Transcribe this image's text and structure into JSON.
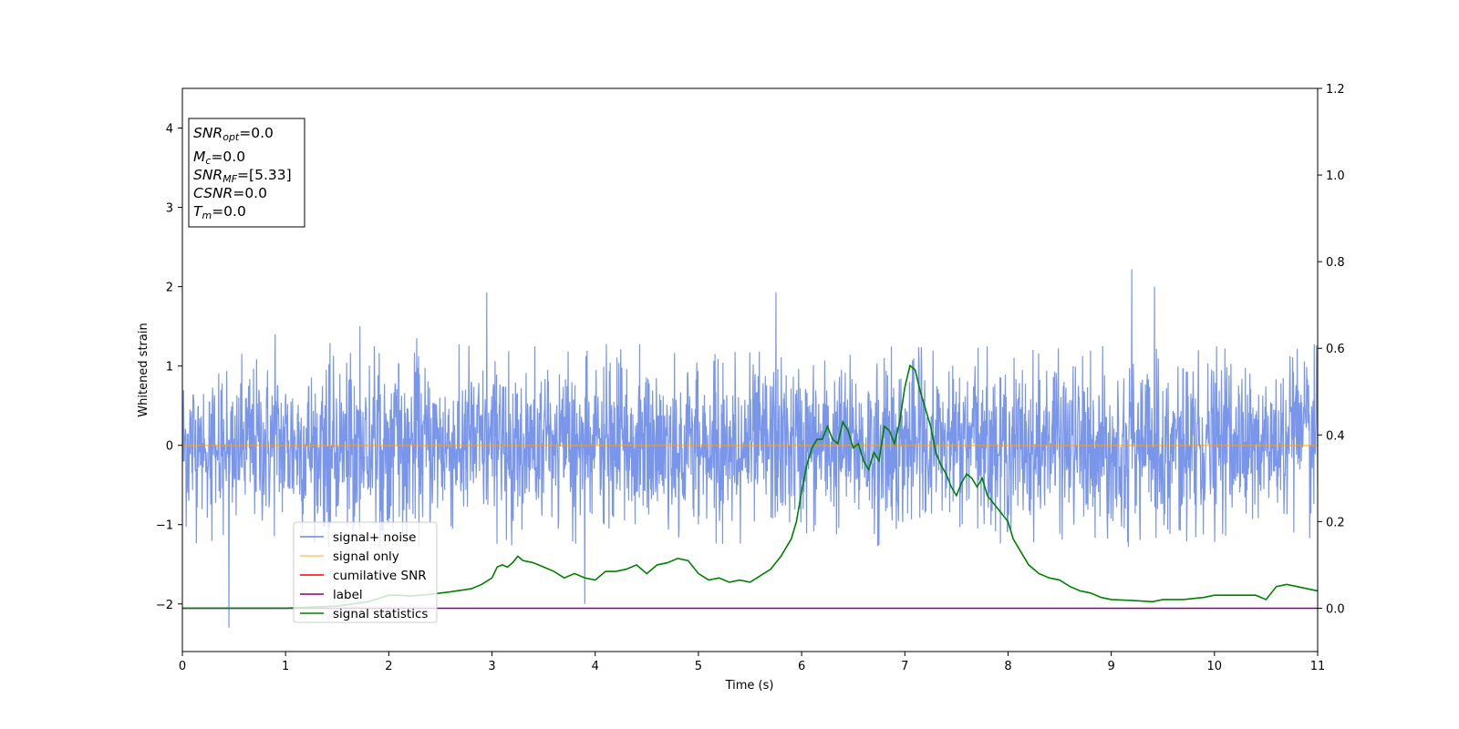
{
  "chart_data": {
    "type": "line",
    "xlabel": "Time (s)",
    "ylabel": "Whitened strain",
    "xlim": [
      0,
      11
    ],
    "ylim_left": [
      -2.6,
      4.5
    ],
    "ylim_right": [
      -0.1,
      1.2
    ],
    "x_ticks": [
      "0",
      "1",
      "2",
      "3",
      "4",
      "5",
      "6",
      "7",
      "8",
      "9",
      "10",
      "11"
    ],
    "y_left_ticks": [
      "−2",
      "−1",
      "0",
      "1",
      "2",
      "3",
      "4"
    ],
    "y_right_ticks": [
      "0.0",
      "0.2",
      "0.4",
      "0.6",
      "0.8",
      "1.0",
      "1.2"
    ],
    "grid": false,
    "legend_position": "lower-left",
    "legend": [
      {
        "name": "signal+ noise",
        "color": "#4169e1"
      },
      {
        "name": "signal only",
        "color": "#ffa500"
      },
      {
        "name": "cumilative SNR",
        "color": "#ff0000"
      },
      {
        "name": "label",
        "color": "#800080"
      },
      {
        "name": "signal statistics",
        "color": "#008000"
      }
    ],
    "info_box": [
      {
        "base": "SNR",
        "sub": "opt",
        "value": "=0.0"
      },
      {
        "base": "M",
        "sub": "c",
        "value": "=0.0"
      },
      {
        "base": "SNR",
        "sub": "MF",
        "value": "=[5.33]"
      },
      {
        "base": "CSNR",
        "sub": "",
        "value": "=0.0"
      },
      {
        "base": "T",
        "sub": "m",
        "value": "=0.0"
      }
    ],
    "series": [
      {
        "name": "signal+ noise",
        "axis": "left",
        "color": "#4169e1",
        "description_range": [
          -2.3,
          2.22
        ],
        "noise_envelope": {
          "typical_max": 1.3,
          "typical_min": -1.3,
          "samples": 3000,
          "spikes": [
            [
              0.45,
              -2.3
            ],
            [
              0.9,
              1.4
            ],
            [
              2.95,
              1.93
            ],
            [
              3.9,
              -2.0
            ],
            [
              5.75,
              1.93
            ],
            [
              9.2,
              2.22
            ],
            [
              9.42,
              2.0
            ],
            [
              1.72,
              1.5
            ],
            [
              2.27,
              1.35
            ]
          ]
        }
      },
      {
        "name": "signal only",
        "axis": "left",
        "color": "#ffa500",
        "x": [
          0,
          11
        ],
        "y": [
          0,
          0
        ]
      },
      {
        "name": "label",
        "axis": "right",
        "color": "#800080",
        "x": [
          0,
          11
        ],
        "y": [
          0,
          0
        ]
      },
      {
        "name": "signal statistics",
        "axis": "right",
        "color": "#008000",
        "x": [
          0,
          0.5,
          1.0,
          1.5,
          1.8,
          2.0,
          2.1,
          2.2,
          2.4,
          2.5,
          2.6,
          2.8,
          2.9,
          3.0,
          3.05,
          3.1,
          3.15,
          3.2,
          3.25,
          3.3,
          3.4,
          3.5,
          3.6,
          3.7,
          3.8,
          3.9,
          4.0,
          4.1,
          4.2,
          4.3,
          4.4,
          4.5,
          4.6,
          4.7,
          4.8,
          4.9,
          5.0,
          5.1,
          5.2,
          5.3,
          5.4,
          5.5,
          5.6,
          5.7,
          5.8,
          5.85,
          5.9,
          5.95,
          6.0,
          6.05,
          6.1,
          6.15,
          6.2,
          6.25,
          6.3,
          6.35,
          6.4,
          6.45,
          6.5,
          6.55,
          6.6,
          6.65,
          6.7,
          6.75,
          6.8,
          6.85,
          6.9,
          6.95,
          7.0,
          7.05,
          7.1,
          7.15,
          7.2,
          7.25,
          7.3,
          7.35,
          7.4,
          7.45,
          7.5,
          7.55,
          7.6,
          7.65,
          7.7,
          7.75,
          7.8,
          7.9,
          8.0,
          8.05,
          8.1,
          8.15,
          8.2,
          8.3,
          8.4,
          8.5,
          8.6,
          8.7,
          8.8,
          8.9,
          9.0,
          9.2,
          9.4,
          9.5,
          9.7,
          9.9,
          10.0,
          10.2,
          10.4,
          10.5,
          10.6,
          10.7,
          10.8,
          10.9,
          11.0
        ],
        "y": [
          0.0,
          0.0,
          0.0,
          0.005,
          0.015,
          0.03,
          0.03,
          0.028,
          0.032,
          0.035,
          0.038,
          0.045,
          0.055,
          0.07,
          0.095,
          0.1,
          0.095,
          0.105,
          0.12,
          0.11,
          0.105,
          0.095,
          0.085,
          0.07,
          0.08,
          0.07,
          0.065,
          0.085,
          0.085,
          0.09,
          0.1,
          0.08,
          0.1,
          0.105,
          0.115,
          0.11,
          0.08,
          0.065,
          0.07,
          0.06,
          0.065,
          0.06,
          0.075,
          0.09,
          0.12,
          0.14,
          0.16,
          0.2,
          0.27,
          0.33,
          0.37,
          0.39,
          0.39,
          0.42,
          0.39,
          0.38,
          0.43,
          0.41,
          0.37,
          0.38,
          0.34,
          0.32,
          0.36,
          0.34,
          0.42,
          0.41,
          0.38,
          0.43,
          0.51,
          0.56,
          0.55,
          0.5,
          0.46,
          0.42,
          0.36,
          0.33,
          0.31,
          0.28,
          0.26,
          0.29,
          0.31,
          0.3,
          0.28,
          0.3,
          0.26,
          0.23,
          0.2,
          0.16,
          0.14,
          0.12,
          0.1,
          0.08,
          0.07,
          0.065,
          0.05,
          0.04,
          0.035,
          0.025,
          0.02,
          0.018,
          0.015,
          0.02,
          0.02,
          0.025,
          0.03,
          0.03,
          0.03,
          0.02,
          0.05,
          0.055,
          0.05,
          0.045,
          0.04
        ]
      }
    ]
  }
}
